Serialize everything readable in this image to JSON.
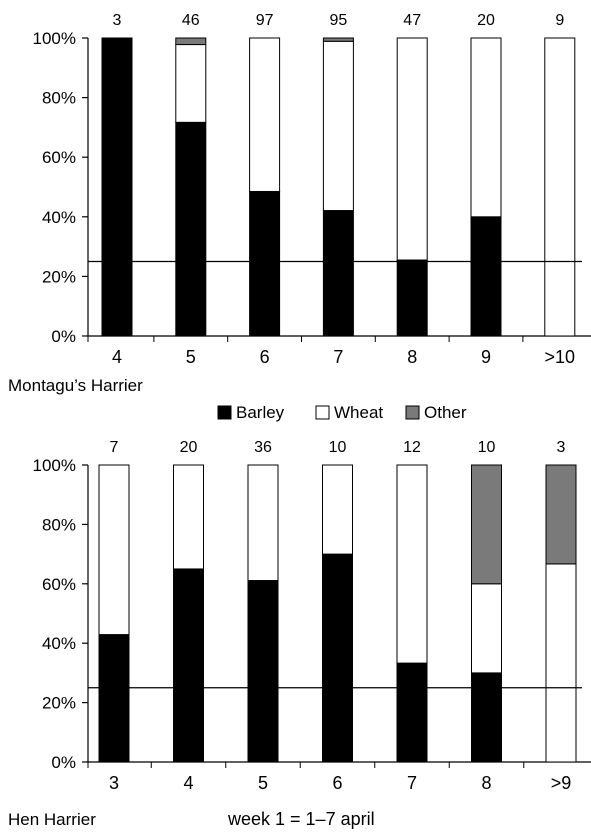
{
  "legend": {
    "items": [
      {
        "label": "Barley",
        "color": "#000000"
      },
      {
        "label": "Wheat",
        "color": "#ffffff"
      },
      {
        "label": "Other",
        "color": "#7a7a7a"
      }
    ],
    "placement": "between-panels"
  },
  "footer_note": "week 1 = 1–7 april",
  "chart_data": [
    {
      "type": "bar",
      "stacked": true,
      "percent": true,
      "panel_label": "Montagu’s Harrier",
      "categories": [
        "4",
        "5",
        "6",
        "7",
        "8",
        "9",
        ">10"
      ],
      "sample_sizes": [
        "3",
        "46",
        "97",
        "95",
        "47",
        "20",
        "9"
      ],
      "series": [
        {
          "name": "Barley",
          "values": [
            100,
            71.7,
            48.5,
            42.1,
            25.5,
            40,
            0
          ]
        },
        {
          "name": "Wheat",
          "values": [
            0,
            26.1,
            51.5,
            56.8,
            74.5,
            60,
            100
          ]
        },
        {
          "name": "Other",
          "values": [
            0,
            2.2,
            0,
            1.1,
            0,
            0,
            0
          ]
        }
      ],
      "y_ticks": [
        "0%",
        "20%",
        "40%",
        "60%",
        "80%",
        "100%"
      ],
      "ylim": [
        0,
        100
      ],
      "reference_line": 25,
      "grid": false
    },
    {
      "type": "bar",
      "stacked": true,
      "percent": true,
      "panel_label": "Hen Harrier",
      "categories": [
        "3",
        "4",
        "5",
        "6",
        "7",
        "8",
        ">9"
      ],
      "sample_sizes": [
        "7",
        "20",
        "36",
        "10",
        "12",
        "10",
        "3"
      ],
      "series": [
        {
          "name": "Barley",
          "values": [
            42.9,
            65,
            61.1,
            70,
            33.3,
            30,
            0
          ]
        },
        {
          "name": "Wheat",
          "values": [
            57.1,
            35,
            38.9,
            30,
            66.7,
            30,
            66.7
          ]
        },
        {
          "name": "Other",
          "values": [
            0,
            0,
            0,
            0,
            0,
            40,
            33.3
          ]
        }
      ],
      "y_ticks": [
        "0%",
        "20%",
        "40%",
        "60%",
        "80%",
        "100%"
      ],
      "ylim": [
        0,
        100
      ],
      "reference_line": 25,
      "grid": false
    }
  ]
}
